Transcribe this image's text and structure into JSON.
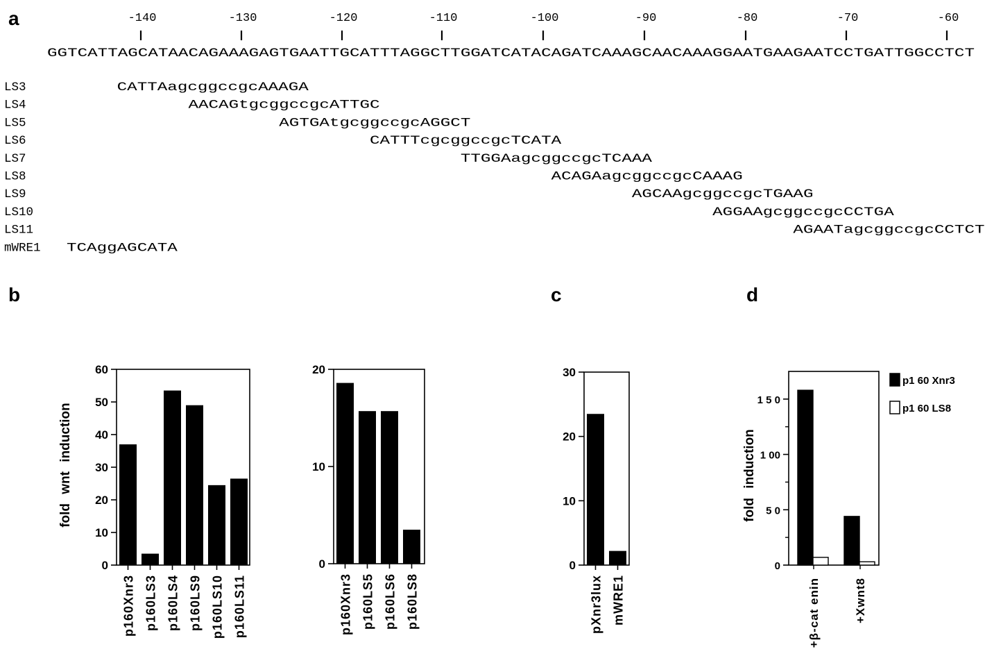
{
  "panels": {
    "a": "a",
    "b": "b",
    "c": "c",
    "d": "d"
  },
  "sequence": {
    "positions": [
      "-140",
      "-130",
      "-120",
      "-110",
      "-100",
      "-90",
      "-80",
      "-70",
      "-60"
    ],
    "wild_type": "GGTCATTAGCATAACAGAAAGAGTGAATTGCATTTAGGCTTGGATCATACAGATCAAAGCAACAAAGGAATGAAGAATCCTGATTGGCCTCT",
    "mutants": [
      {
        "name": "LS3",
        "seq": "CATTAagcggccgcAAAGA",
        "offset": 5
      },
      {
        "name": "LS4",
        "seq": "AACAGtgcggccgcATTGC",
        "offset": 14
      },
      {
        "name": "LS5",
        "seq": "AGTGAtgcggccgcAGGCT",
        "offset": 23
      },
      {
        "name": "LS6",
        "seq": "CATTTcgcggccgcTCATA",
        "offset": 32
      },
      {
        "name": "LS7",
        "seq": "TTGGAagcggccgcTCAAA",
        "offset": 41
      },
      {
        "name": "LS8",
        "seq": "ACAGAagcggccgcCAAAG",
        "offset": 50
      },
      {
        "name": "LS9",
        "seq": "AGCAAgcggccgcTGAAG",
        "offset": 58
      },
      {
        "name": "LS10",
        "seq": "AGGAAgcggccgcCCTGA",
        "offset": 66
      },
      {
        "name": "LS11",
        "seq": "AGAATagcggccgcCCTCT",
        "offset": 74
      },
      {
        "name": "mWRE1",
        "seq": "TCAggAGCATA",
        "offset": 2
      }
    ]
  },
  "chart_data": [
    {
      "panel": "b",
      "type": "bar",
      "ylabel": "fold wnt induction",
      "ylim": [
        0,
        60
      ],
      "yticks": [
        "0",
        "10",
        "20",
        "30",
        "40",
        "50",
        "60"
      ],
      "categories": [
        "p160Xnr3",
        "p160LS3",
        "p160LS4",
        "p160LS9",
        "p160LS10",
        "p160LS11"
      ],
      "values": [
        37,
        3.5,
        53.5,
        49,
        24.5,
        26.5
      ]
    },
    {
      "panel": "b",
      "type": "bar",
      "ylabel": "",
      "ylim": [
        0,
        20
      ],
      "yticks": [
        "0",
        "10",
        "20"
      ],
      "categories": [
        "p160Xnr3",
        "p160LS5",
        "p160LS6",
        "p160LS8"
      ],
      "values": [
        18.6,
        15.7,
        15.7,
        3.5
      ]
    },
    {
      "panel": "c",
      "type": "bar",
      "ylabel": "",
      "ylim": [
        0,
        30
      ],
      "yticks": [
        "0",
        "10",
        "20",
        "30"
      ],
      "categories": [
        "pXnr3lux",
        "mWRE1"
      ],
      "values": [
        23.5,
        2.2
      ]
    },
    {
      "panel": "d",
      "type": "bar",
      "ylabel": "fold induction",
      "ylim": [
        0,
        175
      ],
      "yticks": [
        "0",
        "5 0",
        "1 00",
        "1 5 0"
      ],
      "categories": [
        "+β-cat enin",
        "+Xwnt8"
      ],
      "series": [
        {
          "name": "p1 60 Xnr3",
          "values": [
            158,
            44
          ],
          "color": "#000000"
        },
        {
          "name": "p1 60 LS8",
          "values": [
            7,
            3
          ],
          "color": "#ffffff"
        }
      ]
    }
  ]
}
